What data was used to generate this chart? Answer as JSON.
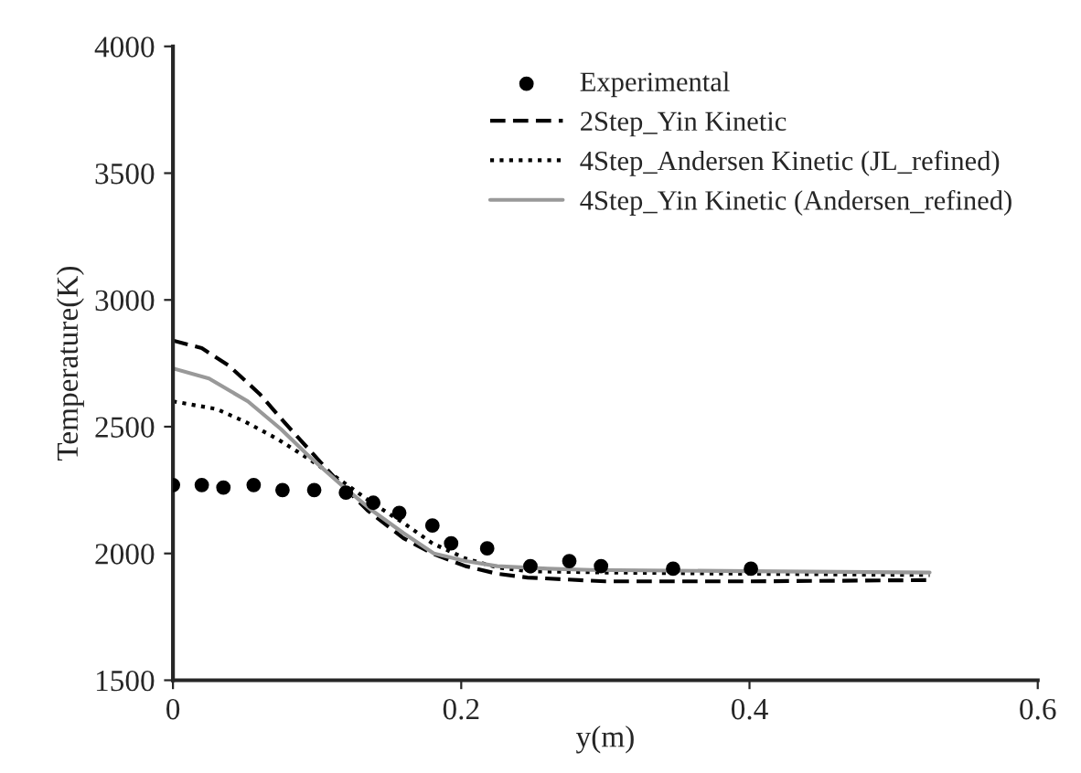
{
  "chart_data": {
    "type": "line",
    "xlabel": "y(m)",
    "ylabel": "Temperature(K)",
    "xlim": [
      0,
      0.6
    ],
    "xticks": [
      0,
      0.2,
      0.4,
      0.6
    ],
    "ylim": [
      1500,
      4000
    ],
    "yticks": [
      1500,
      2000,
      2500,
      3000,
      3500,
      4000
    ],
    "grid": false,
    "legend": "top right",
    "series": [
      {
        "name": "Experimental",
        "type": "scatter",
        "color": "#000000",
        "marker": "circle",
        "x": [
          0,
          0.02,
          0.035,
          0.056,
          0.076,
          0.098,
          0.12,
          0.139,
          0.157,
          0.18,
          0.193,
          0.218,
          0.248,
          0.275,
          0.297,
          0.347,
          0.401
        ],
        "values": [
          2270,
          2270,
          2260,
          2270,
          2250,
          2250,
          2240,
          2200,
          2160,
          2110,
          2040,
          2020,
          1950,
          1970,
          1950,
          1940,
          1940
        ]
      },
      {
        "name": "2Step_Yin Kinetic",
        "color": "#000000",
        "line_style": "dashed",
        "x": [
          0,
          0.02,
          0.039,
          0.06,
          0.08,
          0.112,
          0.135,
          0.16,
          0.18,
          0.203,
          0.225,
          0.246,
          0.3,
          0.4,
          0.525
        ],
        "values": [
          2840,
          2810,
          2740,
          2630,
          2500,
          2300,
          2170,
          2060,
          2000,
          1950,
          1920,
          1905,
          1890,
          1890,
          1895
        ]
      },
      {
        "name": "4Step_Andersen Kinetic (JL_refined)",
        "color": "#000000",
        "line_style": "dotted",
        "x": [
          0,
          0.03,
          0.05,
          0.073,
          0.095,
          0.116,
          0.138,
          0.16,
          0.18,
          0.203,
          0.225,
          0.246,
          0.3,
          0.4,
          0.525
        ],
        "values": [
          2600,
          2570,
          2520,
          2450,
          2370,
          2290,
          2200,
          2120,
          2040,
          1980,
          1945,
          1930,
          1925,
          1920,
          1915
        ]
      },
      {
        "name": "4Step_Yin Kinetic (Andersen_refined)",
        "color": "#999999",
        "line_style": "solid",
        "x": [
          0,
          0.025,
          0.052,
          0.075,
          0.095,
          0.117,
          0.138,
          0.16,
          0.181,
          0.203,
          0.225,
          0.26,
          0.29,
          0.4,
          0.525
        ],
        "values": [
          2730,
          2690,
          2600,
          2490,
          2380,
          2270,
          2170,
          2080,
          2000,
          1970,
          1950,
          1940,
          1935,
          1930,
          1925
        ]
      }
    ]
  }
}
